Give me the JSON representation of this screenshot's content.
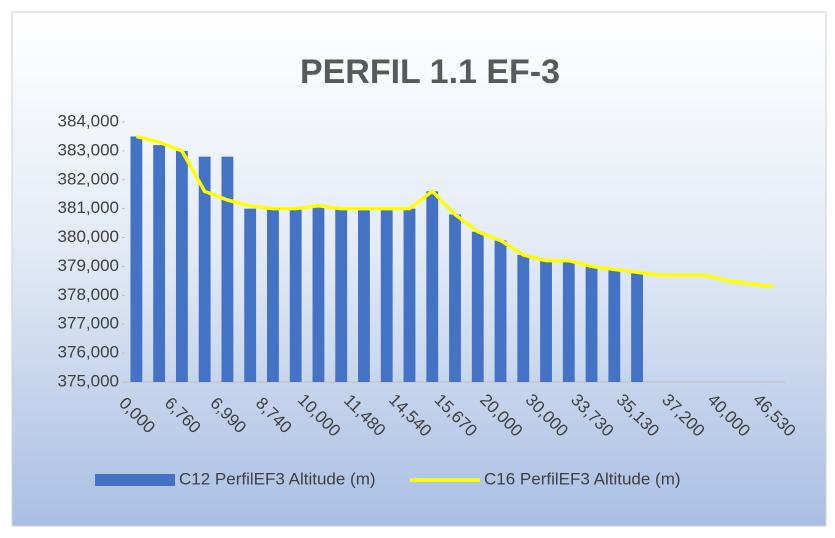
{
  "chart_data": {
    "type": "bar_line",
    "title": "PERFIL 1.1 EF-3",
    "categories": [
      "0,000",
      null,
      "6,760",
      null,
      "6,990",
      null,
      "8,740",
      null,
      "10,000",
      null,
      "11,480",
      null,
      "14,540",
      null,
      "15,670",
      null,
      "20,000",
      null,
      "30,000",
      null,
      "33,730",
      null,
      "35,130",
      null,
      "37,200",
      null,
      "40,000",
      null,
      "46,530"
    ],
    "series": [
      {
        "name": "C12 PerfilEF3 Altitude (m)",
        "type": "bar",
        "color": "#4472c4",
        "values": [
          383.5,
          383.2,
          383.0,
          382.8,
          382.8,
          381.0,
          381.0,
          381.0,
          381.1,
          381.0,
          381.0,
          381.0,
          381.0,
          381.6,
          380.8,
          380.2,
          379.9,
          379.4,
          379.2,
          379.2,
          379.0,
          378.9,
          378.8,
          null,
          null,
          null,
          null,
          null,
          null
        ]
      },
      {
        "name": "C16 PerfilEF3 Altitude (m)",
        "type": "line",
        "color": "#ffff00",
        "values": [
          383.5,
          383.3,
          383.0,
          381.6,
          381.3,
          381.1,
          381.0,
          381.0,
          381.1,
          381.0,
          381.0,
          381.0,
          381.0,
          381.6,
          380.8,
          380.2,
          379.9,
          379.4,
          379.2,
          379.2,
          379.0,
          378.9,
          378.8,
          378.7,
          378.7,
          378.7,
          378.5,
          378.4,
          378.3
        ]
      }
    ],
    "ylim": [
      375,
      384
    ],
    "yticks": [
      {
        "value": 375,
        "label": "375,000"
      },
      {
        "value": 376,
        "label": "376,000"
      },
      {
        "value": 377,
        "label": "377,000"
      },
      {
        "value": 378,
        "label": "378,000"
      },
      {
        "value": 379,
        "label": "379,000"
      },
      {
        "value": 380,
        "label": "380,000"
      },
      {
        "value": 381,
        "label": "381,000"
      },
      {
        "value": 382,
        "label": "382,000"
      },
      {
        "value": 383,
        "label": "383,000"
      },
      {
        "value": 384,
        "label": "384,000"
      }
    ],
    "legend": "bottom"
  }
}
